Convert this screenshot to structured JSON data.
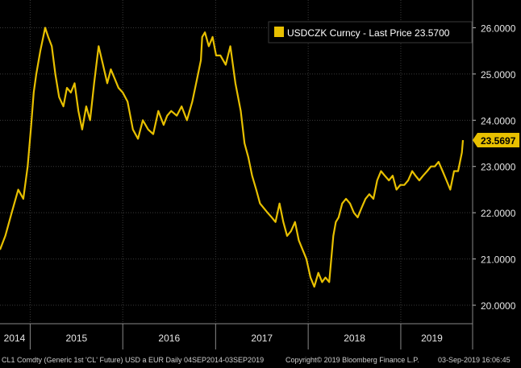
{
  "colors": {
    "background": "#000000",
    "series": "#e8c000",
    "grid": "#3a3a3a",
    "axis_text": "#e6e6e6",
    "last_price_box": "#e8c000",
    "last_price_text": "#000000"
  },
  "legend": {
    "label": "USDCZK Curncy - Last Price 23.5700"
  },
  "last_price_tag": "23.5697",
  "footer": {
    "left": "CL1 Comdty (Generic 1st 'CL' Future) USD a EUR  Daily 04SEP2014-03SEP2019",
    "center": "Copyright© 2019 Bloomberg Finance L.P.",
    "right": "03-Sep-2019 16:06:45"
  },
  "chart_data": {
    "type": "line",
    "title": "",
    "xlabel": "",
    "ylabel": "",
    "ylim": [
      19.6,
      26.6
    ],
    "xlim": [
      "2014-09-04",
      "2019-09-03"
    ],
    "y_ticks": [
      "20.0000",
      "21.0000",
      "22.0000",
      "23.0000",
      "24.0000",
      "25.0000",
      "26.0000"
    ],
    "x_ticks": [
      "2014",
      "2015",
      "2016",
      "2017",
      "2018",
      "2019"
    ],
    "grid": true,
    "legend_position": "top-right",
    "series": [
      {
        "name": "USDCZK Curncy - Last Price 23.5700",
        "x": [
          "2014-09-04",
          "2014-09-25",
          "2014-10-20",
          "2014-11-15",
          "2014-12-05",
          "2014-12-22",
          "2015-01-05",
          "2015-01-15",
          "2015-01-25",
          "2015-02-10",
          "2015-03-01",
          "2015-03-13",
          "2015-03-27",
          "2015-04-10",
          "2015-04-25",
          "2015-05-12",
          "2015-05-26",
          "2015-06-10",
          "2015-06-25",
          "2015-07-10",
          "2015-07-25",
          "2015-08-10",
          "2015-08-25",
          "2015-09-10",
          "2015-09-28",
          "2015-10-15",
          "2015-11-01",
          "2015-11-15",
          "2015-11-30",
          "2015-12-15",
          "2016-01-01",
          "2016-01-20",
          "2016-02-10",
          "2016-03-01",
          "2016-03-20",
          "2016-04-10",
          "2016-04-30",
          "2016-05-20",
          "2016-06-10",
          "2016-06-24",
          "2016-07-10",
          "2016-08-01",
          "2016-08-20",
          "2016-09-10",
          "2016-10-01",
          "2016-10-20",
          "2016-11-04",
          "2016-11-09",
          "2016-11-20",
          "2016-12-05",
          "2016-12-20",
          "2017-01-03",
          "2017-01-20",
          "2017-02-10",
          "2017-02-28",
          "2017-03-20",
          "2017-04-10",
          "2017-04-25",
          "2017-05-10",
          "2017-05-25",
          "2017-06-10",
          "2017-06-25",
          "2017-07-10",
          "2017-07-25",
          "2017-08-10",
          "2017-08-25",
          "2017-09-10",
          "2017-09-25",
          "2017-10-10",
          "2017-10-25",
          "2017-11-10",
          "2017-11-25",
          "2017-12-10",
          "2017-12-25",
          "2018-01-10",
          "2018-01-25",
          "2018-02-10",
          "2018-02-25",
          "2018-03-10",
          "2018-03-25",
          "2018-04-10",
          "2018-04-20",
          "2018-05-01",
          "2018-05-15",
          "2018-05-30",
          "2018-06-15",
          "2018-06-30",
          "2018-07-15",
          "2018-07-30",
          "2018-08-15",
          "2018-08-30",
          "2018-09-15",
          "2018-09-30",
          "2018-10-15",
          "2018-10-30",
          "2018-11-15",
          "2018-11-30",
          "2018-12-15",
          "2018-12-30",
          "2019-01-15",
          "2019-01-30",
          "2019-02-15",
          "2019-02-28",
          "2019-03-15",
          "2019-03-30",
          "2019-04-15",
          "2019-04-30",
          "2019-05-15",
          "2019-05-30",
          "2019-06-15",
          "2019-06-30",
          "2019-07-15",
          "2019-07-30",
          "2019-08-15",
          "2019-08-30",
          "2019-09-03"
        ],
        "values": [
          21.2,
          21.5,
          22.0,
          22.5,
          22.3,
          23.0,
          23.9,
          24.6,
          25.0,
          25.5,
          26.0,
          25.8,
          25.6,
          25.0,
          24.5,
          24.3,
          24.7,
          24.6,
          24.8,
          24.2,
          23.8,
          24.3,
          24.0,
          24.8,
          25.6,
          25.2,
          24.8,
          25.1,
          24.9,
          24.7,
          24.6,
          24.4,
          23.8,
          23.6,
          24.0,
          23.8,
          23.7,
          24.2,
          23.9,
          24.1,
          24.2,
          24.1,
          24.3,
          24.0,
          24.4,
          24.9,
          25.3,
          25.8,
          25.9,
          25.6,
          25.8,
          25.4,
          25.4,
          25.2,
          25.6,
          24.8,
          24.2,
          23.5,
          23.2,
          22.8,
          22.5,
          22.2,
          22.1,
          22.0,
          21.9,
          21.8,
          22.2,
          21.8,
          21.5,
          21.6,
          21.8,
          21.4,
          21.2,
          21.0,
          20.6,
          20.4,
          20.7,
          20.5,
          20.6,
          20.5,
          21.5,
          21.8,
          21.9,
          22.2,
          22.3,
          22.2,
          22.0,
          21.9,
          22.1,
          22.3,
          22.4,
          22.3,
          22.7,
          22.9,
          22.8,
          22.7,
          22.8,
          22.5,
          22.6,
          22.6,
          22.7,
          22.9,
          22.8,
          22.7,
          22.8,
          22.9,
          23.0,
          23.0,
          23.1,
          22.9,
          22.7,
          22.5,
          22.9,
          22.9,
          23.3,
          23.57
        ]
      }
    ]
  }
}
